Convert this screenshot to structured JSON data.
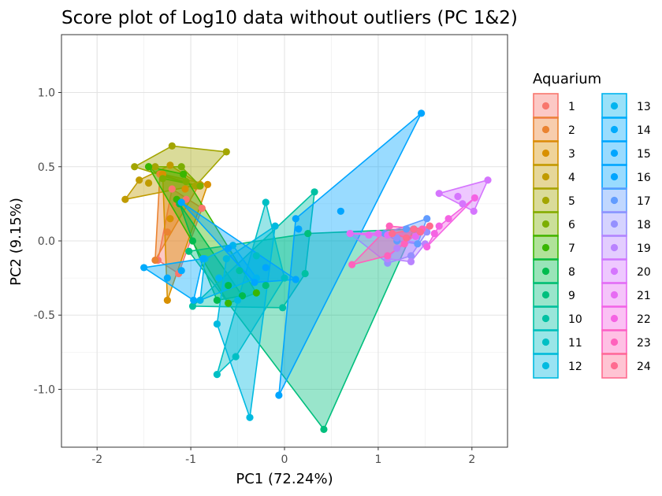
{
  "chart_data": {
    "type": "scatter",
    "title": "Score plot of Log10 data without outliers (PC 1&2)",
    "xlabel": "PC1 (72.24%)",
    "ylabel": "PC2 (9.15%)",
    "xlim": [
      -2.38,
      2.38
    ],
    "ylim": [
      -1.39,
      1.39
    ],
    "x_ticks": [
      -2,
      -1,
      0,
      1,
      2
    ],
    "x_tick_labels": [
      "-2",
      "-1",
      "0",
      "1",
      "2"
    ],
    "y_ticks": [
      -1.0,
      -0.5,
      0.0,
      0.5,
      1.0
    ],
    "y_tick_labels": [
      "-1.0",
      "-0.5",
      "0.0",
      "0.5",
      "1.0"
    ],
    "grid": true,
    "hulls": true,
    "legend": {
      "title": "Aquarium",
      "position": "right",
      "columns": 2
    },
    "series": [
      {
        "name": "1",
        "color": "#F8766D",
        "points": [
          [
            -1.2,
            0.35
          ],
          [
            -1.05,
            0.28
          ],
          [
            -0.88,
            0.22
          ],
          [
            -1.35,
            -0.13
          ],
          [
            -1.13,
            -0.22
          ]
        ]
      },
      {
        "name": "2",
        "color": "#EA8331",
        "points": [
          [
            -1.33,
            0.45
          ],
          [
            -1.25,
            0.06
          ],
          [
            -1.15,
            0.25
          ],
          [
            -0.92,
            0.37
          ],
          [
            -1.38,
            -0.13
          ]
        ]
      },
      {
        "name": "3",
        "color": "#D89000",
        "points": [
          [
            -1.25,
            -0.4
          ],
          [
            -0.82,
            0.38
          ],
          [
            -1.22,
            0.15
          ],
          [
            -1.06,
            0.35
          ],
          [
            -1.3,
            0.45
          ]
        ]
      },
      {
        "name": "4",
        "color": "#C09B00",
        "points": [
          [
            -1.7,
            0.28
          ],
          [
            -1.45,
            0.39
          ],
          [
            -1.22,
            0.51
          ],
          [
            -0.9,
            0.38
          ],
          [
            -1.55,
            0.41
          ]
        ]
      },
      {
        "name": "5",
        "color": "#A3A500",
        "points": [
          [
            -1.6,
            0.5
          ],
          [
            -1.2,
            0.64
          ],
          [
            -0.62,
            0.6
          ],
          [
            -0.95,
            0.37
          ],
          [
            -1.38,
            0.5
          ]
        ]
      },
      {
        "name": "6",
        "color": "#7CAE00",
        "points": [
          [
            -1.45,
            0.5
          ],
          [
            -1.1,
            0.5
          ],
          [
            -0.9,
            0.37
          ],
          [
            -1.05,
            0.4
          ],
          [
            -1.3,
            0.42
          ]
        ]
      },
      {
        "name": "7",
        "color": "#39B600",
        "points": [
          [
            -1.45,
            0.5
          ],
          [
            -1.08,
            0.45
          ],
          [
            -0.3,
            -0.35
          ],
          [
            -0.6,
            -0.42
          ],
          [
            -1.15,
            0.28
          ]
        ]
      },
      {
        "name": "8",
        "color": "#00BB4E",
        "points": [
          [
            -1.12,
            0.25
          ],
          [
            -0.6,
            -0.3
          ],
          [
            -0.45,
            -0.37
          ],
          [
            -0.72,
            -0.4
          ],
          [
            -0.98,
            0.0
          ]
        ]
      },
      {
        "name": "9",
        "color": "#00BF7D",
        "points": [
          [
            -1.02,
            -0.07
          ],
          [
            0.42,
            -1.27
          ],
          [
            1.38,
            0.08
          ],
          [
            0.25,
            0.05
          ],
          [
            -0.2,
            -0.3
          ]
        ]
      },
      {
        "name": "10",
        "color": "#00C1A3",
        "points": [
          [
            -0.98,
            -0.44
          ],
          [
            -0.02,
            -0.45
          ],
          [
            0.22,
            -0.22
          ],
          [
            0.32,
            0.33
          ],
          [
            -0.48,
            -0.2
          ]
        ]
      },
      {
        "name": "11",
        "color": "#00BFC4",
        "points": [
          [
            -0.2,
            0.26
          ],
          [
            -0.72,
            -0.9
          ],
          [
            -0.52,
            -0.78
          ],
          [
            0.0,
            -0.25
          ],
          [
            -0.3,
            -0.1
          ]
        ]
      },
      {
        "name": "12",
        "color": "#00BAE0",
        "points": [
          [
            -0.72,
            -0.56
          ],
          [
            -0.37,
            -1.19
          ],
          [
            -0.62,
            -0.12
          ],
          [
            -0.1,
            0.1
          ],
          [
            -0.5,
            -0.4
          ]
        ]
      },
      {
        "name": "13",
        "color": "#00B4EF",
        "points": [
          [
            -0.85,
            -0.12
          ],
          [
            -0.55,
            -0.03
          ],
          [
            -0.9,
            -0.4
          ],
          [
            -0.3,
            -0.25
          ],
          [
            -0.7,
            -0.25
          ]
        ]
      },
      {
        "name": "14",
        "color": "#00ABFD",
        "points": [
          [
            -1.5,
            -0.18
          ],
          [
            -0.97,
            -0.4
          ],
          [
            -0.87,
            -0.12
          ],
          [
            -1.1,
            -0.2
          ],
          [
            -1.25,
            -0.25
          ]
        ]
      },
      {
        "name": "15",
        "color": "#00A5FF",
        "points": [
          [
            -1.1,
            0.26
          ],
          [
            -0.32,
            -0.28
          ],
          [
            0.12,
            -0.26
          ],
          [
            -0.6,
            -0.05
          ],
          [
            -0.2,
            -0.18
          ]
        ]
      },
      {
        "name": "16",
        "color": "#00A5FF",
        "points": [
          [
            -0.06,
            -1.04
          ],
          [
            0.15,
            0.08
          ],
          [
            1.46,
            0.86
          ],
          [
            0.12,
            0.15
          ],
          [
            0.6,
            0.2
          ]
        ]
      },
      {
        "name": "17",
        "color": "#619CFF",
        "points": [
          [
            1.07,
            0.05
          ],
          [
            1.42,
            -0.02
          ],
          [
            1.52,
            0.15
          ],
          [
            1.2,
            0.0
          ],
          [
            1.3,
            0.08
          ]
        ]
      },
      {
        "name": "18",
        "color": "#9590FF",
        "points": [
          [
            0.7,
            0.05
          ],
          [
            1.1,
            -0.15
          ],
          [
            1.35,
            -0.1
          ],
          [
            1.52,
            0.06
          ],
          [
            1.2,
            0.02
          ]
        ]
      },
      {
        "name": "19",
        "color": "#B983FF",
        "points": [
          [
            1.1,
            -0.12
          ],
          [
            1.35,
            -0.14
          ],
          [
            1.5,
            -0.02
          ],
          [
            1.3,
            0.0
          ],
          [
            1.2,
            -0.05
          ]
        ]
      },
      {
        "name": "20",
        "color": "#D575FE",
        "points": [
          [
            1.65,
            0.32
          ],
          [
            2.17,
            0.41
          ],
          [
            2.02,
            0.2
          ],
          [
            1.85,
            0.3
          ],
          [
            1.9,
            0.25
          ]
        ]
      },
      {
        "name": "21",
        "color": "#E76BF3",
        "points": [
          [
            0.7,
            0.05
          ],
          [
            1.0,
            0.05
          ],
          [
            1.4,
            0.03
          ],
          [
            1.1,
            0.04
          ],
          [
            0.9,
            0.04
          ]
        ]
      },
      {
        "name": "22",
        "color": "#F563E3",
        "points": [
          [
            1.52,
            -0.04
          ],
          [
            1.65,
            0.1
          ],
          [
            2.03,
            0.29
          ],
          [
            1.75,
            0.15
          ],
          [
            1.6,
            0.05
          ]
        ]
      },
      {
        "name": "23",
        "color": "#FF62BC",
        "points": [
          [
            0.72,
            -0.16
          ],
          [
            1.1,
            -0.1
          ],
          [
            1.47,
            0.08
          ],
          [
            1.12,
            0.1
          ],
          [
            1.28,
            -0.02
          ]
        ]
      },
      {
        "name": "24",
        "color": "#FF6C90",
        "points": [
          [
            1.15,
            0.05
          ],
          [
            1.38,
            0.08
          ],
          [
            1.55,
            0.1
          ],
          [
            1.3,
            0.02
          ],
          [
            1.45,
            0.06
          ]
        ]
      }
    ]
  }
}
